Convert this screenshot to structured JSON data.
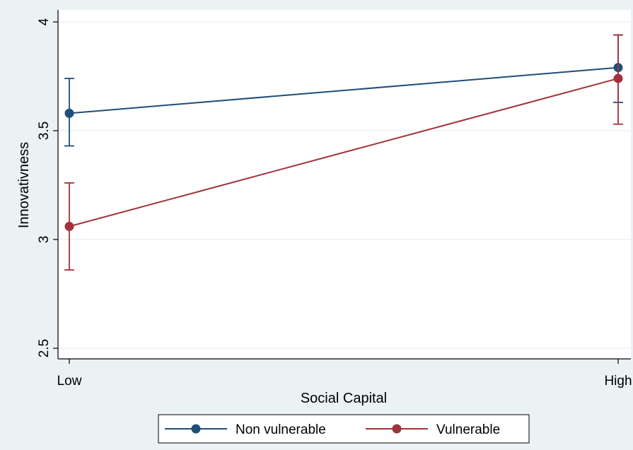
{
  "chart_data": {
    "type": "line",
    "title": "",
    "xlabel": "Social Capital",
    "ylabel": "Innovativness",
    "categories": [
      "Low",
      "High"
    ],
    "ylim": [
      2.5,
      4
    ],
    "yticks": [
      "2.5",
      "3",
      "3.5",
      "4"
    ],
    "grid": true,
    "legend_position": "bottom",
    "series": [
      {
        "name": "Non vulnerable",
        "color": "#1f4e79",
        "values": [
          3.58,
          3.79
        ],
        "ci_low": [
          3.43,
          3.63
        ],
        "ci_high": [
          3.74,
          3.94
        ]
      },
      {
        "name": "Vulnerable",
        "color": "#a3323a",
        "values": [
          3.06,
          3.74
        ],
        "ci_low": [
          2.86,
          3.53
        ],
        "ci_high": [
          3.26,
          3.94
        ]
      }
    ]
  },
  "colors": {
    "background": "#eaf2f3",
    "plot_background": "#ffffff",
    "grid": "#eaf2f3",
    "axis": "#000000"
  }
}
